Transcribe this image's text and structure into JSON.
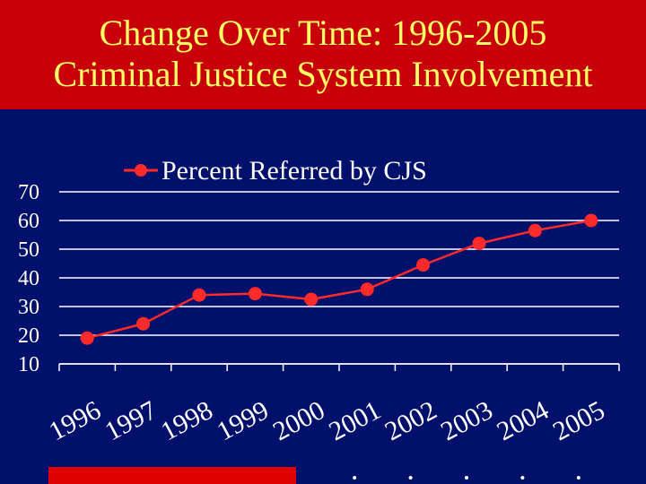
{
  "header": {
    "title_line1": "Change Over Time: 1996-2005",
    "title_line2": "Criminal Justice System Involvement"
  },
  "colors": {
    "background": "#00106b",
    "header": "#c8000a",
    "title": "#ffff66",
    "series": "#ff2a2a",
    "grid": "#ffffff",
    "footer_bar": "#e00000"
  },
  "chart_data": {
    "type": "line",
    "categories": [
      "1996",
      "1997",
      "1998",
      "1999",
      "2000",
      "2001",
      "2002",
      "2003",
      "2004",
      "2005"
    ],
    "series": [
      {
        "name": "Percent Referred by CJS",
        "values": [
          19,
          24,
          34,
          34.5,
          32.5,
          36,
          44.5,
          52,
          56.5,
          60
        ]
      }
    ],
    "y_ticks": [
      "70",
      "60",
      "50",
      "40",
      "30",
      "20",
      "10"
    ],
    "ylim": [
      10,
      70
    ],
    "grid": true,
    "legend_position": "top-center"
  }
}
